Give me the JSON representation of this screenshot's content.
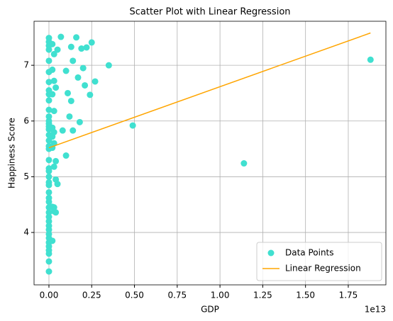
{
  "chart_data": {
    "type": "scatter",
    "title": "Scatter Plot with Linear Regression",
    "x_label": "GDP",
    "y_label": "Happiness Score",
    "x_offset_label": "1e13",
    "xlim": [
      -0.087,
      1.97
    ],
    "ylim": [
      3.06,
      7.79
    ],
    "xticks": [
      {
        "value": 0,
        "label": "0.00"
      },
      {
        "value": 0.25,
        "label": "0.25"
      },
      {
        "value": 0.5,
        "label": "0.50"
      },
      {
        "value": 0.75,
        "label": "0.75"
      },
      {
        "value": 1,
        "label": "1.00"
      },
      {
        "value": 1.25,
        "label": "1.25"
      },
      {
        "value": 1.5,
        "label": "1.50"
      },
      {
        "value": 1.75,
        "label": "1.75"
      }
    ],
    "yticks": [
      4,
      5,
      6,
      7
    ],
    "grid": true,
    "legend": "lower right",
    "series": [
      {
        "name": "Data Points",
        "type": "scatter",
        "color": "#40e0d0",
        "x": [
          0,
          0,
          0,
          0,
          0,
          0,
          0,
          0,
          0,
          0,
          0,
          0,
          0,
          0,
          0,
          0,
          0,
          0,
          0,
          0,
          0,
          0,
          0,
          0,
          0,
          0,
          0,
          0,
          0,
          0,
          0,
          0,
          0,
          0,
          0,
          0,
          0,
          0,
          0,
          0,
          0,
          0,
          0,
          0.02,
          0.03,
          0.02,
          0.03,
          0.04,
          0.02,
          0.03,
          0.02,
          0.03,
          0.02,
          0.03,
          0.02,
          0.03,
          0.04,
          0.02,
          0.03,
          0.02,
          0.07,
          0.16,
          0.05,
          0.13,
          0.19,
          0.25,
          0.22,
          0.14,
          0.1,
          0.2,
          0.35,
          0.17,
          0.27,
          0.21,
          0.11,
          0.24,
          0.13,
          0.12,
          0.18,
          0.14,
          0.08,
          0.49,
          0.1,
          0.04,
          0.05,
          0.04,
          0.03,
          1.14,
          1.88
        ],
        "values": [
          7.49,
          7.42,
          7.35,
          7.28,
          7.08,
          6.88,
          6.7,
          6.55,
          6.48,
          6.37,
          6.2,
          6.08,
          6.0,
          5.95,
          5.9,
          5.85,
          5.75,
          5.65,
          5.55,
          5.5,
          5.3,
          5.15,
          5.1,
          5.0,
          4.9,
          4.85,
          4.72,
          4.62,
          4.55,
          4.45,
          4.36,
          4.28,
          4.2,
          4.12,
          4.05,
          3.97,
          3.9,
          3.82,
          3.75,
          3.68,
          3.62,
          3.48,
          3.3,
          7.38,
          7.2,
          6.92,
          6.72,
          6.6,
          6.48,
          6.18,
          5.88,
          5.8,
          5.72,
          5.6,
          5.52,
          5.18,
          4.95,
          4.46,
          4.38,
          3.85,
          7.51,
          7.5,
          7.28,
          7.33,
          7.3,
          7.41,
          7.32,
          7.08,
          6.9,
          6.95,
          7.0,
          6.78,
          6.71,
          6.64,
          6.5,
          6.47,
          6.36,
          6.08,
          5.98,
          5.83,
          5.83,
          5.92,
          5.38,
          5.28,
          4.87,
          4.36,
          4.45,
          5.24,
          7.1
        ]
      },
      {
        "name": "Linear Regression",
        "type": "line",
        "color": "#ffa500",
        "x": [
          0,
          1.88
        ],
        "values": [
          5.52,
          7.58
        ]
      }
    ]
  }
}
